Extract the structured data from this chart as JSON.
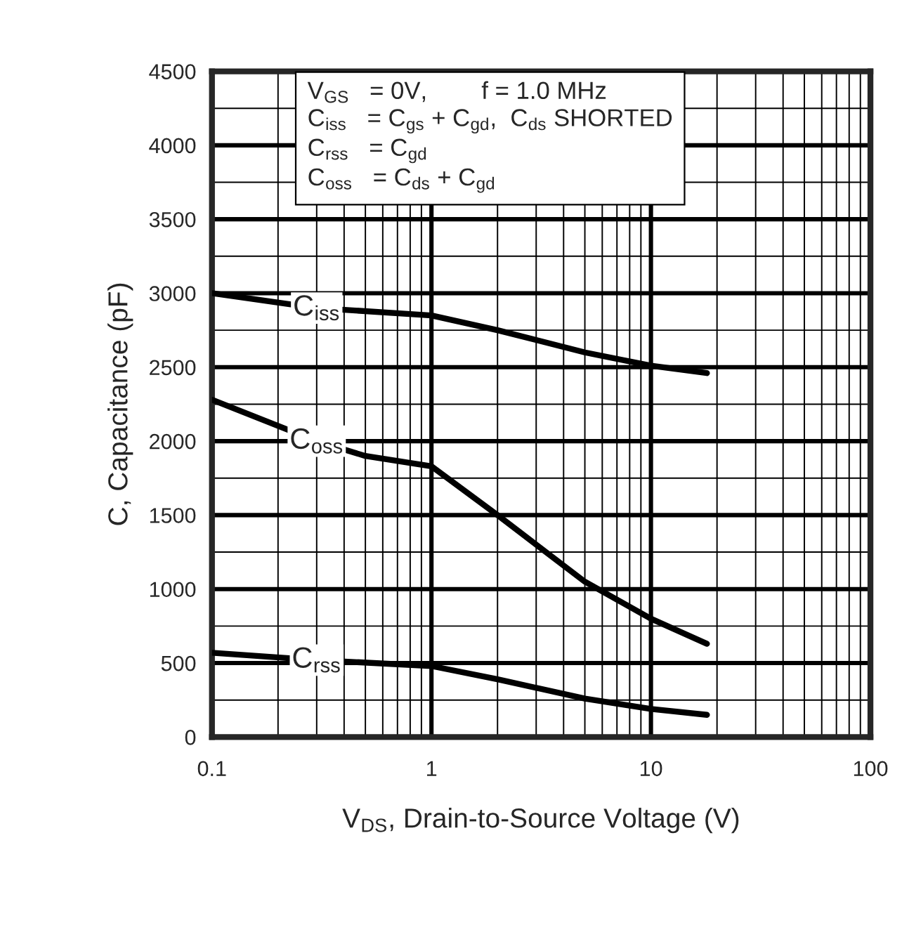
{
  "chart_data": {
    "type": "line",
    "xlabel": "V$_{DS}$, Drain-to-Source Voltage (V)",
    "ylabel": "C, Capacitance (pF)",
    "annotations": [
      "V$_{GS}$   = 0V,        f = 1.0 MHz",
      "C$_{iss}$   = C$_{gs}$ + C$_{gd}$,  C$_{ds}$ SHORTED",
      "C$_{rss}$   = C$_{gd}$",
      "C$_{oss}$   = C$_{ds}$ + C$_{gd}$"
    ],
    "log": "x",
    "xlim": [
      0.1,
      100
    ],
    "xticks": [
      0.1,
      1,
      10,
      100
    ],
    "ylim": [
      0,
      4500
    ],
    "yticks": [
      0,
      500,
      1000,
      1500,
      2000,
      2500,
      3000,
      3500,
      4000,
      4500
    ],
    "grid": true,
    "line_style": "solid",
    "marker": "none",
    "series": [
      {
        "name": "C$_{iss}$",
        "color": "#000000",
        "x": [
          0.1,
          0.3,
          1,
          2,
          5,
          10,
          18
        ],
        "values": [
          3000,
          2900,
          2850,
          2750,
          2600,
          2510,
          2460
        ]
      },
      {
        "name": "C$_{oss}$",
        "color": "#000000",
        "x": [
          0.1,
          0.3,
          0.5,
          1,
          2,
          5,
          10,
          18
        ],
        "values": [
          2280,
          2000,
          1900,
          1830,
          1500,
          1050,
          800,
          630
        ]
      },
      {
        "name": "C$_{rss}$",
        "color": "#000000",
        "x": [
          0.1,
          0.3,
          1,
          2,
          5,
          10,
          18
        ],
        "values": [
          570,
          520,
          480,
          390,
          260,
          190,
          150
        ]
      }
    ]
  }
}
